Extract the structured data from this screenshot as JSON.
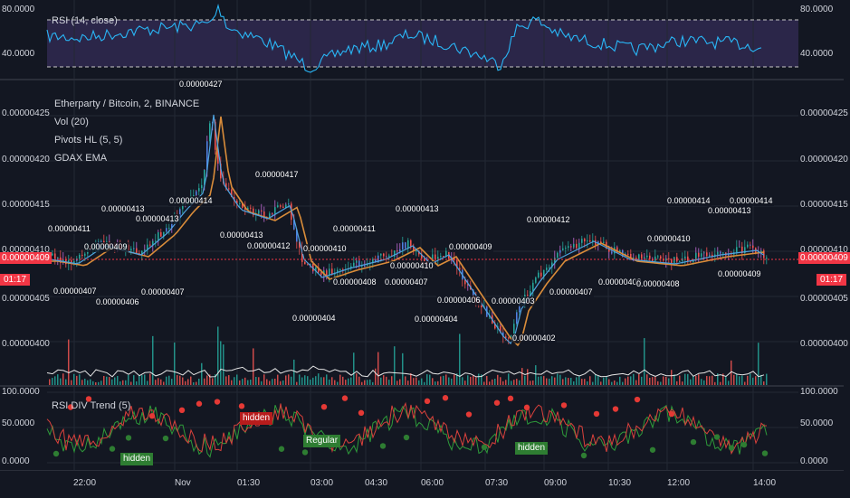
{
  "colors": {
    "background": "#131722",
    "up": "#26a69a",
    "down": "#ef5350",
    "rsi_line": "#29b6f6",
    "rsi_band": "#4a3a7a",
    "ema_fast": "#4fa3e0",
    "ema_slow": "#d98c3a",
    "price_line": "#f23645",
    "bull_marker": "#2e7d32",
    "bear_marker": "#e53935",
    "grid": "#232834"
  },
  "rsi_pane": {
    "title": "RSI (14, close)",
    "left_ticks": [
      "80.0000",
      "40.0000"
    ],
    "right_ticks": [
      "80.0000",
      "40.0000"
    ],
    "upper_band": 70,
    "lower_band": 30,
    "range": [
      20,
      90
    ]
  },
  "main_pane": {
    "legend": [
      "Etherparty / Bitcoin, 2, BINANCE",
      "Vol (20)",
      "Pivots HL (5, 5)",
      "GDAX EMA"
    ],
    "left_ticks": [
      "0.00000425",
      "0.00000420",
      "0.00000415",
      "0.00000410",
      "0.00000405",
      "0.00000400"
    ],
    "right_ticks": [
      "0.00000425",
      "0.00000420",
      "0.00000415",
      "0.00000410",
      "0.00000405",
      "0.00000400"
    ],
    "current_price": "0.00000409",
    "countdown": "01:17",
    "pivot_labels": [
      "0.00000427",
      "0.00000411",
      "0.00000409",
      "0.00000407",
      "0.00000413",
      "0.00000414",
      "0.00000413",
      "0.00000407",
      "0.00000406",
      "0.00000417",
      "0.00000413",
      "0.00000412",
      "0.00000410",
      "0.00000411",
      "0.00000408",
      "0.00000407",
      "0.00000404",
      "0.00000413",
      "0.00000409",
      "0.00000410",
      "0.00000406",
      "0.00000404",
      "0.00000403",
      "0.00000402",
      "0.00000412",
      "0.00000407",
      "0.00000408",
      "0.00000414",
      "0.00000413",
      "0.00000414",
      "0.00000410",
      "0.00000409",
      "0.00000408"
    ]
  },
  "div_pane": {
    "title": "RSI DIV Trend (5)",
    "left_ticks": [
      "100.0000",
      "50.0000",
      "0.0000"
    ],
    "right_ticks": [
      "100.0000",
      "50.0000",
      "0.0000"
    ],
    "tags": {
      "hidden_bear": "hidden",
      "regular_bull": "Regular",
      "hidden_bull_1": "hidden",
      "hidden_bull_2": "hidden"
    }
  },
  "time_axis": [
    "22:00",
    "Nov",
    "01:30",
    "03:00",
    "04:30",
    "06:00",
    "07:30",
    "09:00",
    "10:30",
    "12:00",
    "14:00"
  ]
}
